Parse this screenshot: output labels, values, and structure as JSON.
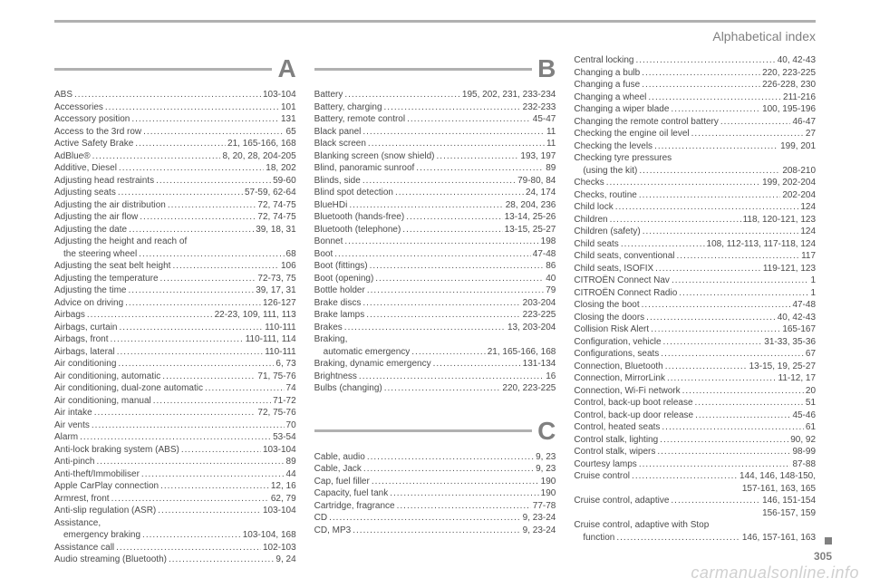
{
  "header": {
    "title": "Alphabetical index"
  },
  "page_number": "305",
  "watermark": "carmanualsonline.info",
  "colors": {
    "rule": "#b0b0b0",
    "text": "#4a4a4a",
    "heading": "#808080",
    "watermark": "#d0d0d0",
    "background": "#ffffff"
  },
  "columns": [
    {
      "sections": [
        {
          "letter": "A",
          "entries": [
            {
              "label": "ABS",
              "pages": "103-104"
            },
            {
              "label": "Accessories",
              "pages": "101"
            },
            {
              "label": "Accessory position",
              "pages": "131"
            },
            {
              "label": "Access to the 3rd row",
              "pages": "65"
            },
            {
              "label": "Active Safety Brake",
              "pages": "21, 165-166, 168"
            },
            {
              "label": "AdBlue®",
              "pages": "8, 20, 28, 204-205"
            },
            {
              "label": "Additive, Diesel",
              "pages": "18, 202"
            },
            {
              "label": "Adjusting head restraints",
              "pages": "59-60"
            },
            {
              "label": "Adjusting seats",
              "pages": "57-59, 62-64"
            },
            {
              "label": "Adjusting the air distribution",
              "pages": "72, 74-75"
            },
            {
              "label": "Adjusting the air flow",
              "pages": "72, 74-75"
            },
            {
              "label": "Adjusting the date",
              "pages": "39, 18, 31"
            },
            {
              "label": "Adjusting the height and reach of",
              "pages": "",
              "noleader": true
            },
            {
              "label": "the steering wheel",
              "pages": "68",
              "cont": true
            },
            {
              "label": "Adjusting the seat belt height",
              "pages": "106"
            },
            {
              "label": "Adjusting the temperature",
              "pages": "72-73, 75"
            },
            {
              "label": "Adjusting the time",
              "pages": "39, 17, 31"
            },
            {
              "label": "Advice on driving",
              "pages": "126-127"
            },
            {
              "label": "Airbags",
              "pages": "22-23, 109, 111, 113"
            },
            {
              "label": "Airbags, curtain",
              "pages": "110-111"
            },
            {
              "label": "Airbags, front",
              "pages": "110-111, 114"
            },
            {
              "label": "Airbags, lateral",
              "pages": "110-111"
            },
            {
              "label": "Air conditioning",
              "pages": "6, 73"
            },
            {
              "label": "Air conditioning, automatic",
              "pages": "71, 75-76"
            },
            {
              "label": "Air conditioning, dual-zone automatic",
              "pages": "74"
            },
            {
              "label": "Air conditioning, manual",
              "pages": "71-72"
            },
            {
              "label": "Air intake",
              "pages": "72, 75-76"
            },
            {
              "label": "Air vents",
              "pages": "70"
            },
            {
              "label": "Alarm",
              "pages": "53-54"
            },
            {
              "label": "Anti-lock braking system (ABS)",
              "pages": "103-104"
            },
            {
              "label": "Anti-pinch",
              "pages": "89"
            },
            {
              "label": "Anti-theft/Immobiliser",
              "pages": "44"
            },
            {
              "label": "Apple CarPlay connection",
              "pages": "12, 16"
            },
            {
              "label": "Armrest, front",
              "pages": "62, 79"
            },
            {
              "label": "Anti-slip regulation (ASR)",
              "pages": "103-104"
            },
            {
              "label": "Assistance,",
              "pages": "",
              "noleader": true
            },
            {
              "label": "emergency braking",
              "pages": "103-104, 168",
              "cont": true
            },
            {
              "label": "Assistance call",
              "pages": "102-103"
            },
            {
              "label": "Audio streaming (Bluetooth)",
              "pages": "9, 24"
            }
          ]
        }
      ]
    },
    {
      "sections": [
        {
          "letter": "B",
          "entries": [
            {
              "label": "Battery",
              "pages": "195, 202, 231, 233-234"
            },
            {
              "label": "Battery, charging",
              "pages": "232-233"
            },
            {
              "label": "Battery, remote control",
              "pages": "45-47"
            },
            {
              "label": "Black panel",
              "pages": "11"
            },
            {
              "label": "Black screen",
              "pages": "11"
            },
            {
              "label": "Blanking screen (snow shield)",
              "pages": "193, 197"
            },
            {
              "label": "Blind, panoramic sunroof",
              "pages": "89"
            },
            {
              "label": "Blinds, side",
              "pages": "79-80, 84"
            },
            {
              "label": "Blind spot detection",
              "pages": "24, 174"
            },
            {
              "label": "BlueHDi",
              "pages": "28, 204, 236"
            },
            {
              "label": "Bluetooth (hands-free)",
              "pages": "13-14, 25-26"
            },
            {
              "label": "Bluetooth (telephone)",
              "pages": "13-15, 25-27"
            },
            {
              "label": "Bonnet",
              "pages": "198"
            },
            {
              "label": "Boot",
              "pages": "47-48"
            },
            {
              "label": "Boot (fittings)",
              "pages": "86"
            },
            {
              "label": "Boot (opening)",
              "pages": "40"
            },
            {
              "label": "Bottle holder",
              "pages": "79"
            },
            {
              "label": "Brake discs",
              "pages": "203-204"
            },
            {
              "label": "Brake lamps",
              "pages": "223-225"
            },
            {
              "label": "Brakes",
              "pages": "13, 203-204"
            },
            {
              "label": "Braking,",
              "pages": "",
              "noleader": true
            },
            {
              "label": "automatic emergency",
              "pages": "21, 165-166, 168",
              "cont": true
            },
            {
              "label": "Braking, dynamic emergency",
              "pages": "131-134"
            },
            {
              "label": "Brightness",
              "pages": "16"
            },
            {
              "label": "Bulbs (changing)",
              "pages": "220, 223-225"
            }
          ]
        },
        {
          "letter": "C",
          "spacer": true,
          "entries": [
            {
              "label": "Cable, audio",
              "pages": "9, 23"
            },
            {
              "label": "Cable, Jack",
              "pages": "9, 23"
            },
            {
              "label": "Cap, fuel filler",
              "pages": "190"
            },
            {
              "label": "Capacity, fuel tank",
              "pages": "190"
            },
            {
              "label": "Cartridge, fragrance",
              "pages": "77-78"
            },
            {
              "label": "CD",
              "pages": "9, 23-24"
            },
            {
              "label": "CD, MP3",
              "pages": "9, 23-24"
            }
          ]
        }
      ]
    },
    {
      "sections": [
        {
          "entries": [
            {
              "label": "Central locking",
              "pages": "40, 42-43"
            },
            {
              "label": "Changing a bulb",
              "pages": "220, 223-225"
            },
            {
              "label": "Changing a fuse",
              "pages": "226-228, 230"
            },
            {
              "label": "Changing a wheel",
              "pages": "211-216"
            },
            {
              "label": "Changing a wiper blade",
              "pages": "100, 195-196"
            },
            {
              "label": "Changing the remote control battery",
              "pages": "46-47"
            },
            {
              "label": "Checking the engine oil level",
              "pages": "27"
            },
            {
              "label": "Checking the levels",
              "pages": "199, 201"
            },
            {
              "label": "Checking tyre pressures",
              "pages": "",
              "noleader": true
            },
            {
              "label": "(using the kit)",
              "pages": "208-210",
              "cont": true
            },
            {
              "label": "Checks",
              "pages": "199, 202-204"
            },
            {
              "label": "Checks, routine",
              "pages": "202-204"
            },
            {
              "label": "Child lock",
              "pages": "124"
            },
            {
              "label": "Children",
              "pages": "118, 120-121, 123"
            },
            {
              "label": "Children (safety)",
              "pages": "124"
            },
            {
              "label": "Child seats",
              "pages": "108, 112-113, 117-118, 124"
            },
            {
              "label": "Child seats, conventional",
              "pages": "117"
            },
            {
              "label": "Child seats, ISOFIX",
              "pages": "119-121, 123"
            },
            {
              "label": "CITROËN Connect Nav",
              "pages": "1"
            },
            {
              "label": "CITROËN Connect Radio",
              "pages": "1"
            },
            {
              "label": "Closing the boot",
              "pages": "47-48"
            },
            {
              "label": "Closing the doors",
              "pages": "40, 42-43"
            },
            {
              "label": "Collision Risk Alert",
              "pages": "165-167"
            },
            {
              "label": "Configuration, vehicle",
              "pages": "31-33, 35-36"
            },
            {
              "label": "Configurations, seats",
              "pages": "67"
            },
            {
              "label": "Connection, Bluetooth",
              "pages": "13-15, 19, 25-27"
            },
            {
              "label": "Connection, MirrorLink",
              "pages": "11-12, 17"
            },
            {
              "label": "Connection, Wi-Fi network",
              "pages": "20"
            },
            {
              "label": "Control, back-up boot release",
              "pages": "51"
            },
            {
              "label": "Control, back-up door release",
              "pages": "45-46"
            },
            {
              "label": "Control, heated seats",
              "pages": "61"
            },
            {
              "label": "Control stalk, lighting",
              "pages": "90, 92"
            },
            {
              "label": "Control stalk, wipers",
              "pages": "98-99"
            },
            {
              "label": "Courtesy lamps",
              "pages": "87-88"
            },
            {
              "label": "Cruise control",
              "pages": "144, 146, 148-150,"
            },
            {
              "label": "157-161, 163, 165",
              "pages": "",
              "noleader": true,
              "cont2": true
            },
            {
              "label": "Cruise control, adaptive",
              "pages": "146, 151-154"
            },
            {
              "label": "156-157, 159",
              "pages": "",
              "noleader": true,
              "cont2": true
            },
            {
              "label": "Cruise control, adaptive with Stop",
              "pages": "",
              "noleader": true
            },
            {
              "label": "function",
              "pages": "146, 157-161, 163",
              "cont": true
            }
          ]
        }
      ]
    }
  ]
}
